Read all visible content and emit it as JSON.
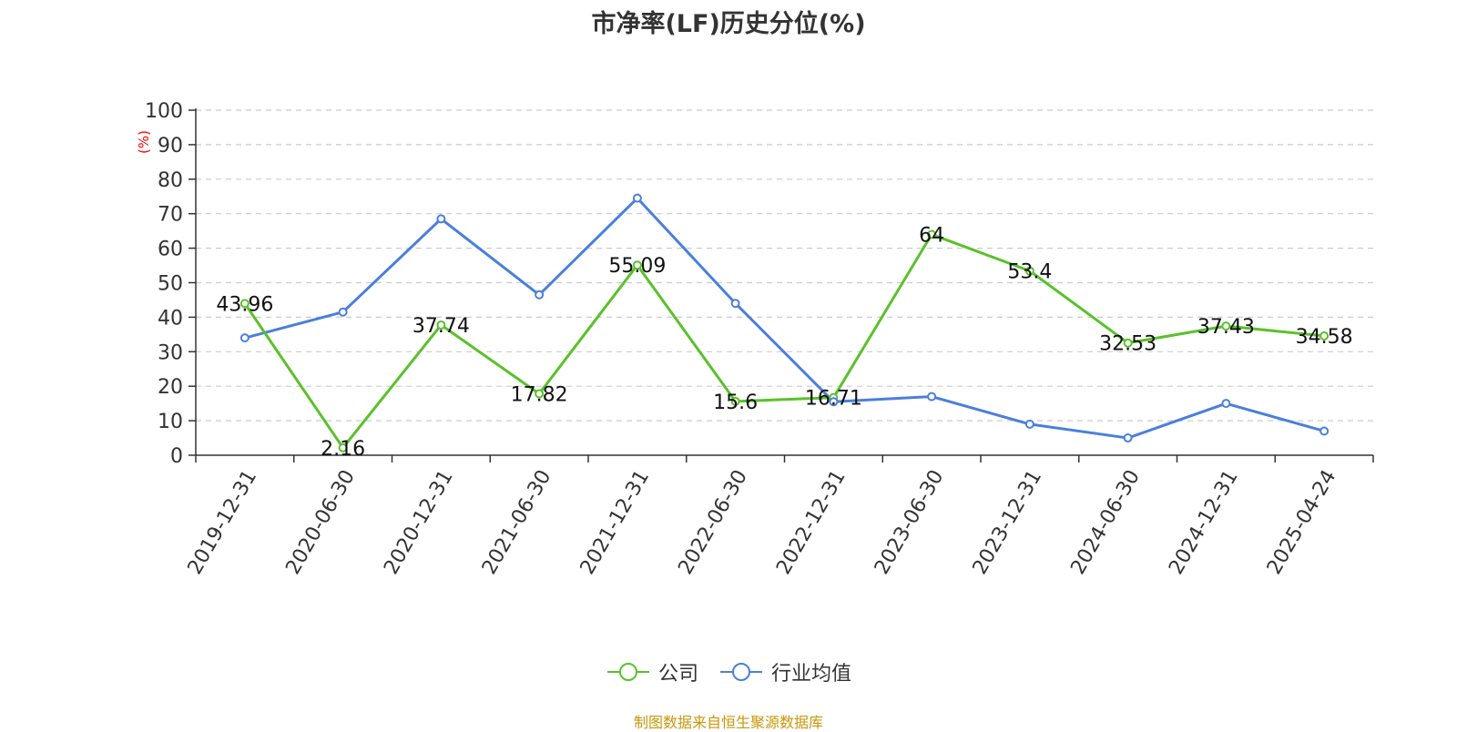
{
  "chart_data": {
    "type": "line",
    "title": "市净率(LF)历史分位(%)",
    "ylabel": "(%)",
    "xlabel": "",
    "ylim": [
      0,
      100
    ],
    "yticks": [
      0,
      10,
      20,
      30,
      40,
      50,
      60,
      70,
      80,
      90,
      100
    ],
    "grid": true,
    "legend_position": "bottom-center",
    "categories": [
      "2019-12-31",
      "2020-06-30",
      "2020-12-31",
      "2021-06-30",
      "2021-12-31",
      "2022-06-30",
      "2022-12-31",
      "2023-06-30",
      "2023-12-31",
      "2024-06-30",
      "2024-12-31",
      "2025-04-24"
    ],
    "series": [
      {
        "name": "公司",
        "color": "#5ac12a",
        "show_labels": true,
        "values": [
          43.96,
          2.16,
          37.74,
          17.82,
          55.09,
          15.6,
          16.71,
          64,
          53.4,
          32.53,
          37.43,
          34.58
        ]
      },
      {
        "name": "行业均值",
        "color": "#4a7fdc",
        "show_labels": false,
        "values": [
          34,
          41.5,
          68.5,
          46.5,
          74.5,
          44,
          15.5,
          17,
          9,
          5,
          15,
          7
        ]
      }
    ]
  },
  "legend": {
    "company": "公司",
    "industry": "行业均值"
  },
  "source_note": "制图数据来自恒生聚源数据库"
}
